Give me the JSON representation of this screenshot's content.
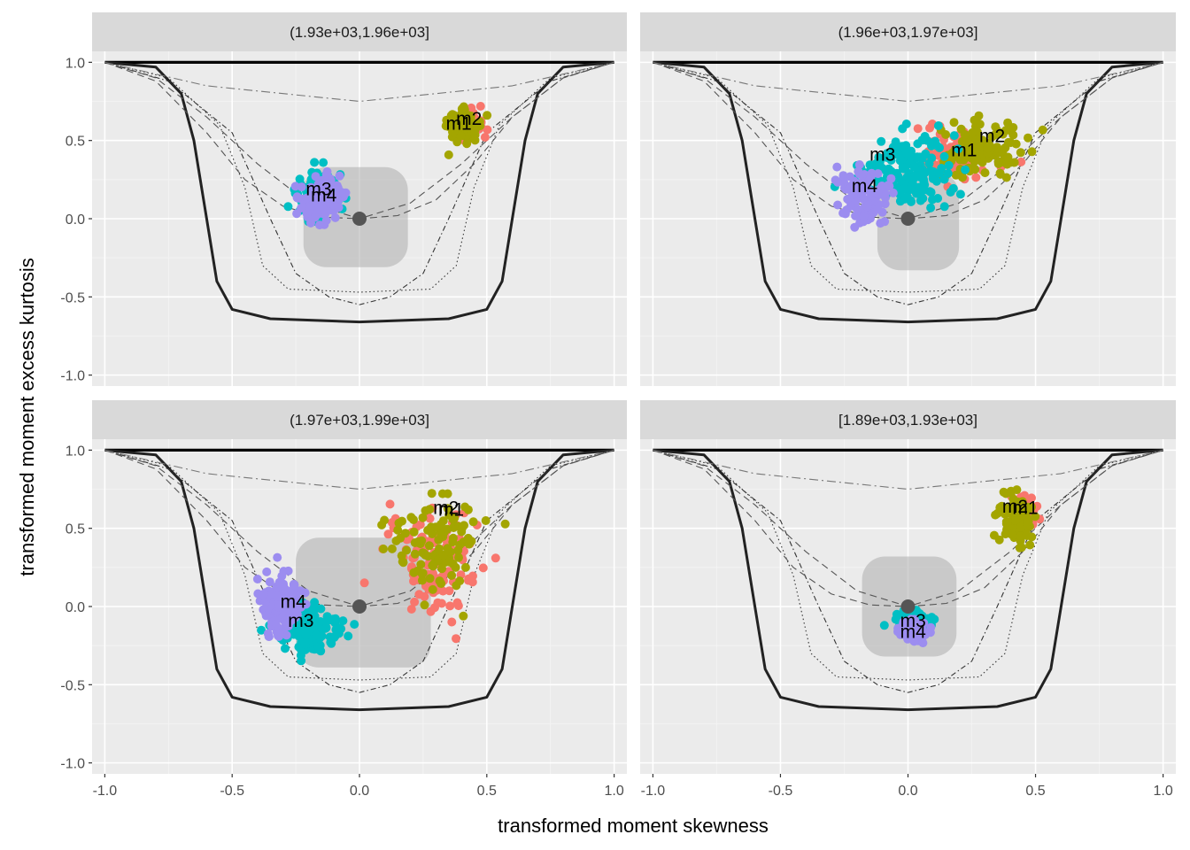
{
  "chart_data": {
    "type": "scatter",
    "xlabel": "transformed moment skewness",
    "ylabel": "transformed moment excess kurtosis",
    "xlim": [
      -1.05,
      1.05
    ],
    "ylim": [
      -1.07,
      1.07
    ],
    "x_ticks": [
      -1.0,
      -0.5,
      0.0,
      0.5,
      1.0
    ],
    "x_tick_labels": [
      "-1.0",
      "-0.5",
      "0.0",
      "0.5",
      "1.0"
    ],
    "y_ticks": [
      -1.0,
      -0.5,
      0.0,
      0.5,
      1.0
    ],
    "y_tick_labels": [
      "-1.0",
      "-0.5",
      "0.0",
      "0.5",
      "1.0"
    ],
    "series_colors": {
      "m1": "#F8766D",
      "m2": "#A3A500",
      "m3": "#00BFC4",
      "m4": "#9C8DF0"
    },
    "reference_point": [
      0.0,
      0.0
    ],
    "boundary_curves": [
      {
        "name": "upper-bound",
        "style": "solid-thick",
        "points": [
          [
            -1.0,
            1.0
          ],
          [
            1.0,
            1.0
          ]
        ]
      },
      {
        "name": "lower-bound",
        "style": "solid",
        "points": [
          [
            -1.0,
            1.0
          ],
          [
            -0.8,
            0.97
          ],
          [
            -0.7,
            0.8
          ],
          [
            -0.65,
            0.5
          ],
          [
            -0.6,
            0.0
          ],
          [
            -0.56,
            -0.4
          ],
          [
            -0.5,
            -0.58
          ],
          [
            -0.35,
            -0.64
          ],
          [
            0.0,
            -0.66
          ],
          [
            0.35,
            -0.64
          ],
          [
            0.5,
            -0.58
          ],
          [
            0.56,
            -0.4
          ],
          [
            0.6,
            0.0
          ],
          [
            0.65,
            0.5
          ],
          [
            0.7,
            0.8
          ],
          [
            0.8,
            0.97
          ],
          [
            1.0,
            1.0
          ]
        ]
      },
      {
        "name": "curve-dotted",
        "style": "dotted",
        "points": [
          [
            -1.0,
            1.0
          ],
          [
            -0.75,
            0.9
          ],
          [
            -0.55,
            0.6
          ],
          [
            -0.45,
            0.2
          ],
          [
            -0.38,
            -0.3
          ],
          [
            -0.28,
            -0.45
          ],
          [
            0.0,
            -0.47
          ],
          [
            0.28,
            -0.45
          ],
          [
            0.38,
            -0.3
          ],
          [
            0.45,
            0.2
          ],
          [
            0.55,
            0.6
          ],
          [
            0.75,
            0.9
          ],
          [
            1.0,
            1.0
          ]
        ]
      },
      {
        "name": "curve-dotdash",
        "style": "dotdash",
        "points": [
          [
            -1.0,
            1.0
          ],
          [
            -0.75,
            0.88
          ],
          [
            -0.5,
            0.55
          ],
          [
            -0.35,
            0.0
          ],
          [
            -0.25,
            -0.35
          ],
          [
            -0.12,
            -0.5
          ],
          [
            0.0,
            -0.55
          ],
          [
            0.12,
            -0.5
          ],
          [
            0.25,
            -0.35
          ],
          [
            0.35,
            0.0
          ],
          [
            0.5,
            0.55
          ],
          [
            0.75,
            0.88
          ],
          [
            1.0,
            1.0
          ]
        ]
      },
      {
        "name": "curve-dashed-inner",
        "style": "dashed",
        "points": [
          [
            -1.0,
            1.0
          ],
          [
            -0.8,
            0.9
          ],
          [
            -0.6,
            0.65
          ],
          [
            -0.4,
            0.35
          ],
          [
            -0.2,
            0.1
          ],
          [
            0.0,
            0.0
          ],
          [
            0.2,
            0.1
          ],
          [
            0.4,
            0.35
          ],
          [
            0.6,
            0.65
          ],
          [
            0.8,
            0.9
          ],
          [
            1.0,
            1.0
          ]
        ]
      },
      {
        "name": "curve-dashed-outer",
        "style": "dashed",
        "points": [
          [
            -1.0,
            1.0
          ],
          [
            -0.8,
            0.88
          ],
          [
            -0.6,
            0.55
          ],
          [
            -0.45,
            0.25
          ],
          [
            -0.3,
            0.08
          ],
          [
            -0.15,
            0.01
          ],
          [
            0.0,
            0.0
          ],
          [
            0.15,
            0.02
          ],
          [
            0.3,
            0.12
          ],
          [
            0.45,
            0.35
          ],
          [
            0.6,
            0.65
          ],
          [
            0.8,
            0.9
          ],
          [
            1.0,
            1.0
          ]
        ]
      },
      {
        "name": "curve-dashdot-top",
        "style": "longdash-dot",
        "points": [
          [
            -1.0,
            1.0
          ],
          [
            -0.6,
            0.85
          ],
          [
            0.0,
            0.75
          ],
          [
            0.6,
            0.85
          ],
          [
            1.0,
            1.0
          ]
        ]
      }
    ],
    "panels": [
      {
        "title": "(1.93e+03,1.96e+03]",
        "confidence_region": {
          "x": [
            -0.22,
            0.19
          ],
          "y": [
            -0.31,
            0.33
          ]
        },
        "clusters": [
          {
            "series": "m1",
            "label": "m1",
            "label_at": [
              0.39,
              0.61
            ],
            "center": [
              0.43,
              0.6
            ],
            "spread": [
              0.05,
              0.09
            ],
            "n": 60
          },
          {
            "series": "m2",
            "label": "m2",
            "label_at": [
              0.43,
              0.64
            ],
            "center": [
              0.4,
              0.6
            ],
            "spread": [
              0.06,
              0.1
            ],
            "n": 90
          },
          {
            "series": "m3",
            "label": "m3",
            "label_at": [
              -0.16,
              0.19
            ],
            "center": [
              -0.16,
              0.15
            ],
            "spread": [
              0.08,
              0.13
            ],
            "n": 110
          },
          {
            "series": "m4",
            "label": "m4",
            "label_at": [
              -0.14,
              0.15
            ],
            "center": [
              -0.16,
              0.12
            ],
            "spread": [
              0.07,
              0.13
            ],
            "n": 150
          }
        ]
      },
      {
        "title": "(1.96e+03,1.97e+03]",
        "confidence_region": {
          "x": [
            -0.12,
            0.2
          ],
          "y": [
            -0.33,
            0.3
          ]
        },
        "clusters": [
          {
            "series": "m1",
            "label": "m1",
            "label_at": [
              0.22,
              0.44
            ],
            "center": [
              0.2,
              0.4
            ],
            "spread": [
              0.13,
              0.15
            ],
            "n": 100
          },
          {
            "series": "m2",
            "label": "m2",
            "label_at": [
              0.33,
              0.53
            ],
            "center": [
              0.3,
              0.45
            ],
            "spread": [
              0.14,
              0.15
            ],
            "n": 120
          },
          {
            "series": "m3",
            "label": "m3",
            "label_at": [
              -0.1,
              0.41
            ],
            "center": [
              0.0,
              0.3
            ],
            "spread": [
              0.17,
              0.2
            ],
            "n": 170
          },
          {
            "series": "m4",
            "label": "m4",
            "label_at": [
              -0.17,
              0.21
            ],
            "center": [
              -0.18,
              0.15
            ],
            "spread": [
              0.09,
              0.17
            ],
            "n": 110
          }
        ]
      },
      {
        "title": "(1.97e+03,1.99e+03]",
        "confidence_region": {
          "x": [
            -0.25,
            0.28
          ],
          "y": [
            -0.39,
            0.44
          ]
        },
        "clusters": [
          {
            "series": "m1",
            "label": "m1",
            "label_at": [
              0.36,
              0.62
            ],
            "center": [
              0.3,
              0.3
            ],
            "spread": [
              0.16,
              0.3
            ],
            "n": 120
          },
          {
            "series": "m2",
            "label": "m2",
            "label_at": [
              0.34,
              0.63
            ],
            "center": [
              0.3,
              0.4
            ],
            "spread": [
              0.15,
              0.25
            ],
            "n": 110
          },
          {
            "series": "m3",
            "label": "m3",
            "label_at": [
              -0.23,
              -0.09
            ],
            "center": [
              -0.2,
              -0.15
            ],
            "spread": [
              0.1,
              0.12
            ],
            "n": 150
          },
          {
            "series": "m4",
            "label": "m4",
            "label_at": [
              -0.26,
              0.03
            ],
            "center": [
              -0.3,
              0.0
            ],
            "spread": [
              0.07,
              0.2
            ],
            "n": 150
          }
        ]
      },
      {
        "title": "[1.89e+03,1.93e+03]",
        "confidence_region": {
          "x": [
            -0.18,
            0.19
          ],
          "y": [
            -0.32,
            0.32
          ]
        },
        "clusters": [
          {
            "series": "m1",
            "label": "m1",
            "label_at": [
              0.46,
              0.63
            ],
            "center": [
              0.45,
              0.6
            ],
            "spread": [
              0.05,
              0.11
            ],
            "n": 60
          },
          {
            "series": "m2",
            "label": "m2",
            "label_at": [
              0.42,
              0.64
            ],
            "center": [
              0.42,
              0.55
            ],
            "spread": [
              0.06,
              0.15
            ],
            "n": 80
          },
          {
            "series": "m3",
            "label": "m3",
            "label_at": [
              0.02,
              -0.09
            ],
            "center": [
              0.02,
              -0.1
            ],
            "spread": [
              0.06,
              0.06
            ],
            "n": 110
          },
          {
            "series": "m4",
            "label": "m4",
            "label_at": [
              0.02,
              -0.16
            ],
            "center": [
              0.02,
              -0.16
            ],
            "spread": [
              0.05,
              0.06
            ],
            "n": 90
          }
        ]
      }
    ]
  }
}
